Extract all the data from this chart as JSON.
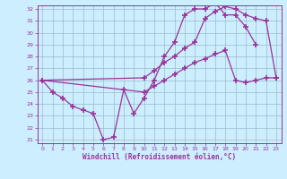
{
  "xlabel": "Windchill (Refroidissement éolien,°C)",
  "xlim": [
    -0.5,
    23.5
  ],
  "ylim": [
    20.7,
    32.3
  ],
  "xticks": [
    0,
    1,
    2,
    3,
    4,
    5,
    6,
    7,
    8,
    9,
    10,
    11,
    12,
    13,
    14,
    15,
    16,
    17,
    18,
    19,
    20,
    21,
    22,
    23
  ],
  "yticks": [
    21,
    22,
    23,
    24,
    25,
    26,
    27,
    28,
    29,
    30,
    31,
    32
  ],
  "background_color": "#cceeff",
  "grid_color": "#99bbcc",
  "line_color": "#993399",
  "line1_x": [
    0,
    1,
    2,
    3,
    4,
    5,
    6,
    7,
    8,
    9,
    10,
    11,
    12,
    13,
    14,
    15,
    16,
    17,
    18,
    19,
    20,
    21
  ],
  "line1_y": [
    26.0,
    25.0,
    24.5,
    23.8,
    23.5,
    23.2,
    21.0,
    21.2,
    25.2,
    23.2,
    24.5,
    26.0,
    28.0,
    29.2,
    31.5,
    32.0,
    32.0,
    32.5,
    31.5,
    31.5,
    30.5,
    29.0
  ],
  "line2_x": [
    0,
    10,
    11,
    12,
    13,
    14,
    15,
    16,
    17,
    18,
    19,
    20,
    21,
    22,
    23
  ],
  "line2_y": [
    26.0,
    26.2,
    26.8,
    27.5,
    28.0,
    28.7,
    29.2,
    31.2,
    31.8,
    32.2,
    32.0,
    31.5,
    31.2,
    31.0,
    26.2
  ],
  "line3_x": [
    0,
    10,
    11,
    12,
    13,
    14,
    15,
    16,
    17,
    18,
    19,
    20,
    21,
    22,
    23
  ],
  "line3_y": [
    26.0,
    25.0,
    25.5,
    26.0,
    26.5,
    27.0,
    27.5,
    27.8,
    28.2,
    28.5,
    26.0,
    25.8,
    26.0,
    26.2,
    26.2
  ]
}
